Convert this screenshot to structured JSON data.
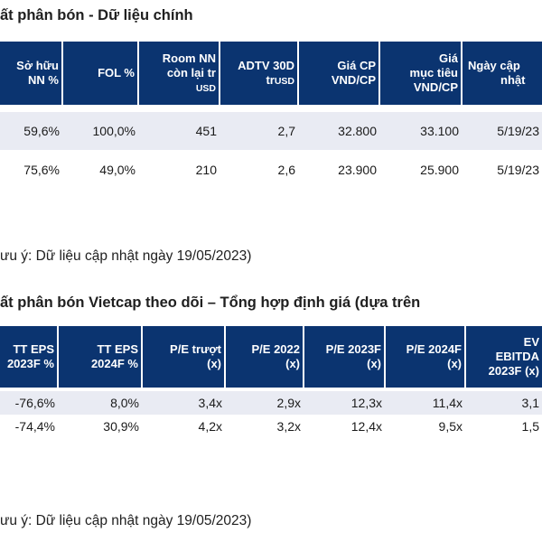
{
  "section1": {
    "title": "ất phân bón - Dữ liệu chính",
    "headers": [
      [
        "Sở hữu",
        "NN %"
      ],
      [
        "FOL %"
      ],
      [
        "Room NN",
        "còn lại tr",
        "USD"
      ],
      [
        "ADTV 30D",
        "tr",
        "USD"
      ],
      [
        "Giá CP",
        "VND/CP"
      ],
      [
        "Giá",
        "mục tiêu",
        "VND/CP"
      ],
      [
        "Ngày cập",
        "nhật"
      ]
    ],
    "rows": [
      [
        "59,6%",
        "100,0%",
        "451",
        "2,7",
        "32.800",
        "33.100",
        "5/19/23"
      ],
      [
        "75,6%",
        "49,0%",
        "210",
        "2,6",
        "23.900",
        "25.900",
        "5/19/23"
      ]
    ],
    "note": "ưu ý: Dữ liệu cập nhật ngày 19/05/2023)"
  },
  "section2": {
    "title": "ất phân bón Vietcap theo dõi – Tổng hợp định giá (dựa trên",
    "headers": [
      [
        "TT EPS",
        "2023F %"
      ],
      [
        "TT EPS",
        "2024F %"
      ],
      [
        "P/E trượt",
        "(x)"
      ],
      [
        "P/E 2022",
        "(x)"
      ],
      [
        "P/E 2023F",
        "(x)"
      ],
      [
        "P/E 2024F",
        "(x)"
      ],
      [
        "EV",
        "EBITDA",
        "2023F (x)"
      ]
    ],
    "rows": [
      [
        "-76,6%",
        "8,0%",
        "3,4x",
        "2,9x",
        "12,3x",
        "11,4x",
        "3,1"
      ],
      [
        "-74,4%",
        "30,9%",
        "4,2x",
        "3,2x",
        "12,4x",
        "9,5x",
        "1,5"
      ]
    ],
    "note": "ưu ý: Dữ liệu cập nhật ngày 19/05/2023)"
  },
  "colors": {
    "header_bg": "#0b3470",
    "header_text": "#ffffff",
    "row_shade": "#e9ebf3"
  }
}
